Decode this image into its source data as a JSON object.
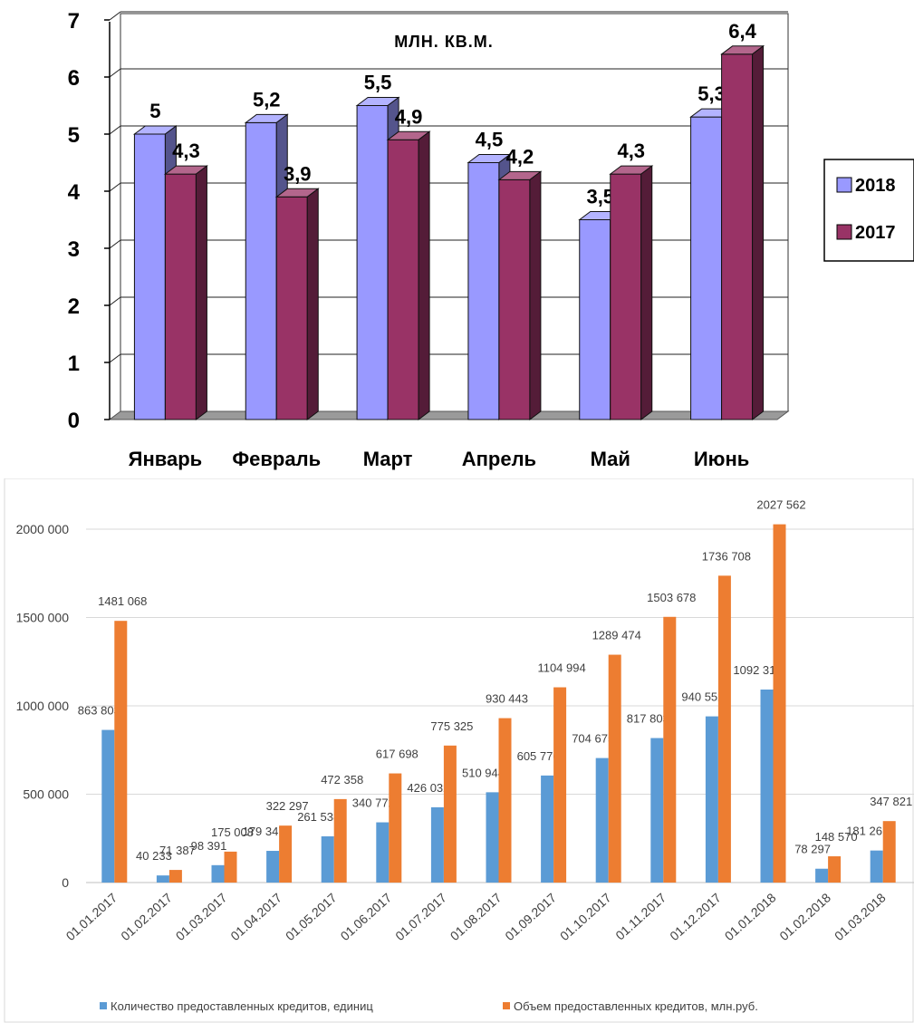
{
  "chart_data": [
    {
      "type": "bar",
      "title": "МЛН. КВ.М.",
      "categories": [
        "Январь",
        "Февраль",
        "Март",
        "Апрель",
        "Май",
        "Июнь"
      ],
      "series": [
        {
          "name": "2018",
          "values": [
            5,
            5.2,
            5.5,
            4.5,
            3.5,
            5.3
          ],
          "labels": [
            "5",
            "5,2",
            "5,5",
            "4,5",
            "3,5",
            "5,3"
          ],
          "color": "#9999ff"
        },
        {
          "name": "2017",
          "values": [
            4.3,
            3.9,
            4.9,
            4.2,
            4.3,
            6.4
          ],
          "labels": [
            "4,3",
            "3,9",
            "4,9",
            "4,2",
            "4,3",
            "6,4"
          ],
          "color": "#993366"
        }
      ],
      "ylim": [
        0,
        7
      ],
      "yticks": [
        "0",
        "1",
        "2",
        "3",
        "4",
        "5",
        "6",
        "7"
      ],
      "grid": true,
      "legend": "right",
      "style": "3d"
    },
    {
      "type": "bar",
      "categories": [
        "01.01.2017",
        "01.02.2017",
        "01.03.2017",
        "01.04.2017",
        "01.05.2017",
        "01.06.2017",
        "01.07.2017",
        "01.08.2017",
        "01.09.2017",
        "01.10.2017",
        "01.11.2017",
        "01.12.2017",
        "01.01.2018",
        "01.02.2018",
        "01.03.2018"
      ],
      "series": [
        {
          "name": "Количество предоставленных кредитов, единиц",
          "values": [
            863803,
            40233,
            98391,
            179347,
            261538,
            340772,
            426032,
            510944,
            605776,
            704675,
            817803,
            940552,
            1092316,
            78297,
            181261
          ],
          "labels": [
            "863 803",
            "40 233",
            "98 391",
            "179 347",
            "261 538",
            "340 772",
            "426 032",
            "510 944",
            "605 776",
            "704 675",
            "817 803",
            "940 552",
            "1092 316",
            "78 297",
            "181 261"
          ],
          "color": "#5b9bd5"
        },
        {
          "name": "Объем предоставленных кредитов, млн.руб.",
          "values": [
            1481068,
            71387,
            175008,
            322297,
            472358,
            617698,
            775325,
            930443,
            1104994,
            1289474,
            1503678,
            1736708,
            2027562,
            148570,
            347821
          ],
          "labels": [
            "1481 068",
            "71 387",
            "175 008",
            "322 297",
            "472 358",
            "617 698",
            "775 325",
            "930 443",
            "1104 994",
            "1289 474",
            "1503 678",
            "1736 708",
            "2027 562",
            "148 570",
            "347 821"
          ],
          "color": "#ed7d31"
        }
      ],
      "ylim": [
        0,
        2000000
      ],
      "yticks": [
        "0",
        "500 000",
        "1000 000",
        "1500 000",
        "2000 000"
      ],
      "grid": true,
      "legend": "bottom"
    }
  ]
}
